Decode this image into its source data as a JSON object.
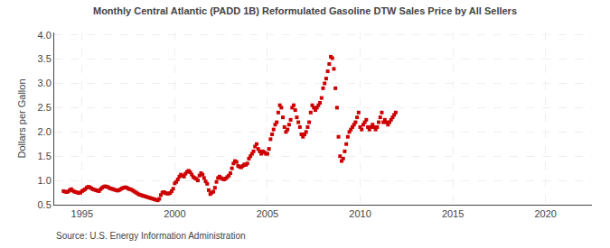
{
  "chart_data": {
    "type": "scatter",
    "title": "Monthly Central Atlantic (PADD 1B) Reformulated Gasoline DTW Sales Price by All Sellers",
    "ylabel": "Dollars per Gallon",
    "annotations": [
      "Source: U.S. Energy Information Administration"
    ],
    "marker": "square",
    "color": "#CC0000",
    "grid": true,
    "xlim": [
      1993.5,
      2022.5
    ],
    "ylim": [
      0.5,
      4.05
    ],
    "xticks": [
      1995,
      2000,
      2005,
      2010,
      2015,
      2020
    ],
    "yticks": [
      0.5,
      {
        "value": 1.0,
        "label": "1.0"
      },
      1.5,
      {
        "value": 2.0,
        "label": "2.0"
      },
      2.5,
      {
        "value": 3.0,
        "label": "3.0"
      },
      3.5,
      {
        "value": 4.0,
        "label": "4.0"
      }
    ],
    "x": [
      1994.0,
      1994.083,
      1994.167,
      1994.25,
      1994.333,
      1994.417,
      1994.5,
      1994.583,
      1994.667,
      1994.75,
      1994.833,
      1994.917,
      1995.0,
      1995.083,
      1995.167,
      1995.25,
      1995.333,
      1995.417,
      1995.5,
      1995.583,
      1995.667,
      1995.75,
      1995.833,
      1995.917,
      1996.0,
      1996.083,
      1996.167,
      1996.25,
      1996.333,
      1996.417,
      1996.5,
      1996.583,
      1996.667,
      1996.75,
      1996.833,
      1996.917,
      1997.0,
      1997.083,
      1997.167,
      1997.25,
      1997.333,
      1997.417,
      1997.5,
      1997.583,
      1997.667,
      1997.75,
      1997.833,
      1997.917,
      1998.0,
      1998.083,
      1998.167,
      1998.25,
      1998.333,
      1998.417,
      1998.5,
      1998.583,
      1998.667,
      1998.75,
      1998.833,
      1998.917,
      1999.0,
      1999.083,
      1999.167,
      1999.25,
      1999.333,
      1999.417,
      1999.5,
      1999.583,
      1999.667,
      1999.75,
      1999.833,
      1999.917,
      2000.0,
      2000.083,
      2000.167,
      2000.25,
      2000.333,
      2000.417,
      2000.5,
      2000.583,
      2000.667,
      2000.75,
      2000.833,
      2000.917,
      2001.0,
      2001.083,
      2001.167,
      2001.25,
      2001.333,
      2001.417,
      2001.5,
      2001.583,
      2001.667,
      2001.75,
      2001.833,
      2001.917,
      2002.0,
      2002.083,
      2002.167,
      2002.25,
      2002.333,
      2002.417,
      2002.5,
      2002.583,
      2002.667,
      2002.75,
      2002.833,
      2002.917,
      2003.0,
      2003.083,
      2003.167,
      2003.25,
      2003.333,
      2003.417,
      2003.5,
      2003.583,
      2003.667,
      2003.75,
      2003.833,
      2003.917,
      2004.0,
      2004.083,
      2004.167,
      2004.25,
      2004.333,
      2004.417,
      2004.5,
      2004.583,
      2004.667,
      2004.75,
      2004.833,
      2004.917,
      2005.0,
      2005.083,
      2005.167,
      2005.25,
      2005.333,
      2005.417,
      2005.5,
      2005.583,
      2005.667,
      2005.75,
      2005.833,
      2005.917,
      2006.0,
      2006.083,
      2006.167,
      2006.25,
      2006.333,
      2006.417,
      2006.5,
      2006.583,
      2006.667,
      2006.75,
      2006.833,
      2006.917,
      2007.0,
      2007.083,
      2007.167,
      2007.25,
      2007.333,
      2007.417,
      2007.5,
      2007.583,
      2007.667,
      2007.75,
      2007.833,
      2007.917,
      2008.0,
      2008.083,
      2008.167,
      2008.25,
      2008.333,
      2008.417,
      2008.5,
      2008.583,
      2008.667,
      2008.75,
      2008.833,
      2008.917,
      2009.0,
      2009.083,
      2009.167,
      2009.25,
      2009.333,
      2009.417,
      2009.5,
      2009.583,
      2009.667,
      2009.75,
      2009.833,
      2009.917,
      2010.0,
      2010.083,
      2010.167,
      2010.25,
      2010.333,
      2010.417,
      2010.5,
      2010.583,
      2010.667,
      2010.75,
      2010.833,
      2010.917,
      2011.0,
      2011.083,
      2011.167,
      2011.25,
      2011.333,
      2011.417,
      2011.5,
      2011.583,
      2011.667,
      2011.75,
      2011.833,
      2011.917
    ],
    "values": [
      0.78,
      0.77,
      0.76,
      0.77,
      0.8,
      0.82,
      0.79,
      0.77,
      0.76,
      0.75,
      0.74,
      0.75,
      0.78,
      0.8,
      0.82,
      0.85,
      0.87,
      0.86,
      0.84,
      0.82,
      0.81,
      0.8,
      0.79,
      0.78,
      0.82,
      0.85,
      0.87,
      0.88,
      0.87,
      0.86,
      0.84,
      0.83,
      0.82,
      0.81,
      0.8,
      0.79,
      0.8,
      0.82,
      0.84,
      0.85,
      0.86,
      0.85,
      0.83,
      0.82,
      0.81,
      0.79,
      0.77,
      0.75,
      0.73,
      0.71,
      0.7,
      0.69,
      0.68,
      0.67,
      0.66,
      0.65,
      0.64,
      0.63,
      0.62,
      0.61,
      0.6,
      0.59,
      0.62,
      0.7,
      0.75,
      0.76,
      0.74,
      0.73,
      0.73,
      0.74,
      0.78,
      0.83,
      0.94,
      0.97,
      1.02,
      1.08,
      1.12,
      1.1,
      1.08,
      1.14,
      1.18,
      1.2,
      1.17,
      1.12,
      1.07,
      1.05,
      1.03,
      1.0,
      1.1,
      1.15,
      1.12,
      1.05,
      0.98,
      0.93,
      0.8,
      0.72,
      0.75,
      0.77,
      0.85,
      0.97,
      1.05,
      1.08,
      1.05,
      1.03,
      1.02,
      1.04,
      1.07,
      1.1,
      1.15,
      1.25,
      1.35,
      1.4,
      1.38,
      1.3,
      1.28,
      1.27,
      1.3,
      1.33,
      1.32,
      1.35,
      1.45,
      1.5,
      1.55,
      1.6,
      1.7,
      1.75,
      1.65,
      1.6,
      1.55,
      1.6,
      1.58,
      1.55,
      1.55,
      1.65,
      1.85,
      1.95,
      2.05,
      2.15,
      2.2,
      2.4,
      2.55,
      2.5,
      2.3,
      2.1,
      2.0,
      2.05,
      2.15,
      2.25,
      2.5,
      2.55,
      2.45,
      2.3,
      2.2,
      2.1,
      1.95,
      1.9,
      1.95,
      2.0,
      2.1,
      2.2,
      2.4,
      2.55,
      2.5,
      2.45,
      2.5,
      2.55,
      2.6,
      2.7,
      2.9,
      3.0,
      3.1,
      3.25,
      3.4,
      3.55,
      3.52,
      3.3,
      2.9,
      2.5,
      1.9,
      1.5,
      1.4,
      1.45,
      1.6,
      1.75,
      1.9,
      2.0,
      2.05,
      2.1,
      2.15,
      2.2,
      2.3,
      2.4,
      2.1,
      2.05,
      2.15,
      2.2,
      2.25,
      2.1,
      2.05,
      2.1,
      2.15,
      2.1,
      2.05,
      2.1,
      2.2,
      2.3,
      2.4,
      2.2,
      2.25,
      2.2,
      2.15,
      2.2,
      2.25,
      2.3,
      2.35,
      2.4
    ]
  }
}
